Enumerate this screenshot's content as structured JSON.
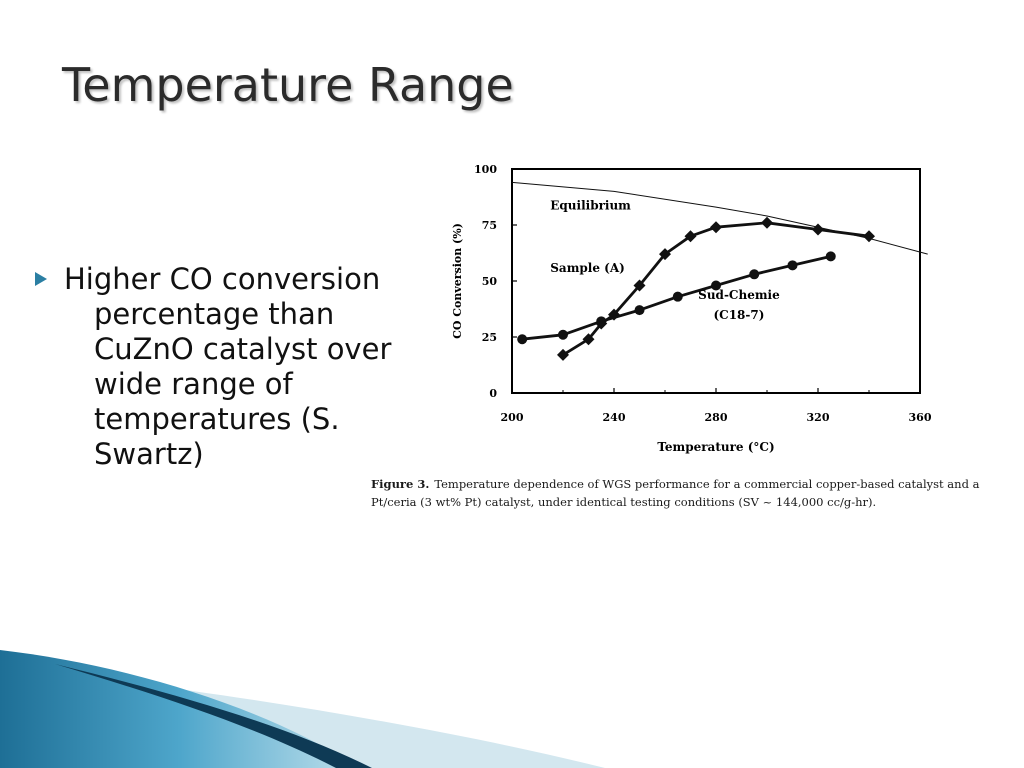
{
  "slide": {
    "title": "Temperature Range",
    "bullet": "Higher CO conversion percentage than CuZnO catalyst over wide range of temperatures (S. Swartz)"
  },
  "figure": {
    "label": "Figure 3.",
    "caption": "Temperature dependence of WGS performance for a commercial copper-based catalyst and a Pt/ceria (3 wt% Pt) catalyst, under identical testing conditions (SV ~ 144,000 cc/g-hr)."
  },
  "chart_data": {
    "type": "line",
    "title": "",
    "xlabel": "Temperature (°C)",
    "ylabel": "CO Conversion (%)",
    "xlim": [
      200,
      360
    ],
    "ylim": [
      0,
      100
    ],
    "xticks": [
      200,
      240,
      280,
      320,
      360
    ],
    "yticks": [
      0,
      25,
      50,
      75,
      100
    ],
    "grid": false,
    "legend": "inline labels",
    "series": [
      {
        "name": "Equilibrium",
        "marker": "none",
        "label_anchor": [
          215,
          82
        ],
        "x": [
          200,
          240,
          280,
          300,
          320,
          340,
          363
        ],
        "y": [
          94,
          90,
          83,
          79,
          74,
          69,
          62
        ]
      },
      {
        "name": "Sample (A)",
        "marker": "diamond",
        "label_anchor": [
          215,
          54
        ],
        "x": [
          220,
          230,
          235,
          240,
          250,
          260,
          270,
          280,
          300,
          320,
          340
        ],
        "y": [
          17,
          24,
          31,
          35,
          48,
          62,
          70,
          74,
          76,
          73,
          70
        ]
      },
      {
        "name": "Sud-Chemie\n(C18-7)",
        "marker": "circle",
        "label_anchor": [
          289,
          42
        ],
        "x": [
          204,
          220,
          235,
          250,
          265,
          280,
          295,
          310,
          325
        ],
        "y": [
          24,
          26,
          32,
          37,
          43,
          48,
          53,
          57,
          61
        ]
      }
    ]
  },
  "colors": {
    "curve": "#111111",
    "deco_dark": "#0e3a55",
    "deco_mid": "#3d8fb5",
    "deco_light": "#bcd9e6"
  }
}
